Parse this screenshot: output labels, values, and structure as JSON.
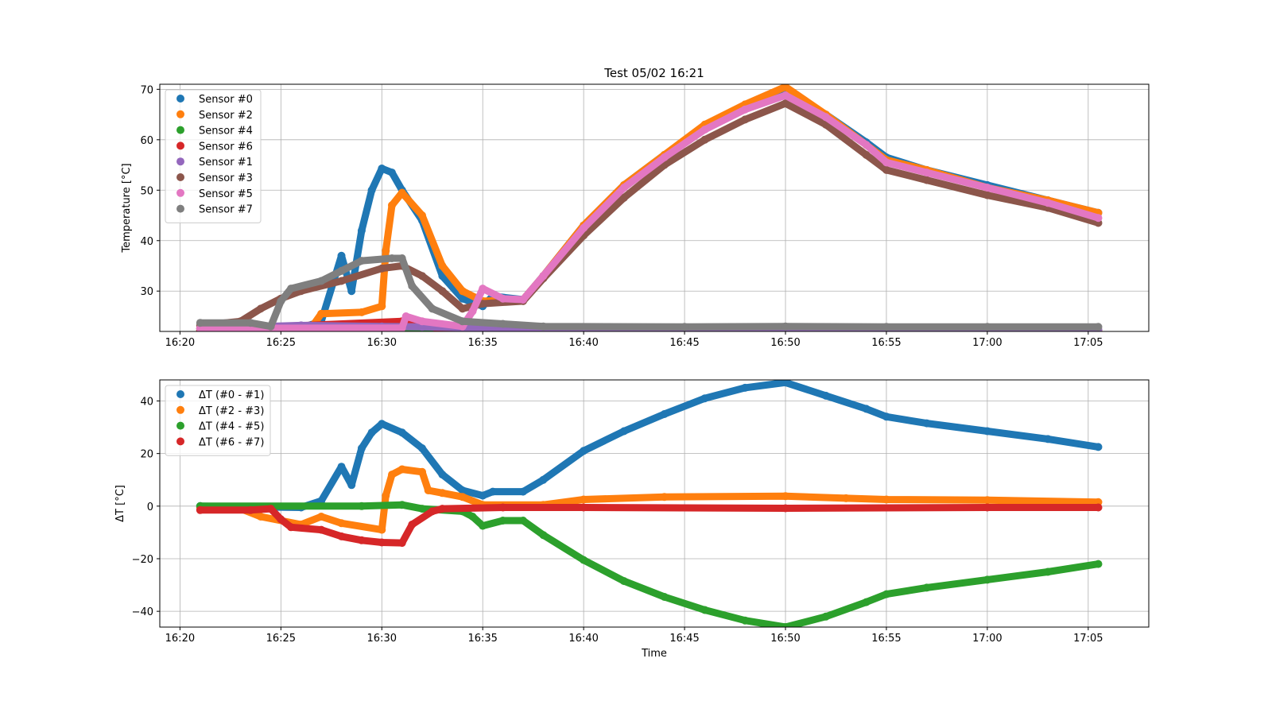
{
  "chart_data": [
    {
      "type": "scatter",
      "title": "Test 05/02 16:21",
      "xlabel": "",
      "ylabel": "Temperature [°C]",
      "x_ticks": [
        "16:20",
        "16:25",
        "16:30",
        "16:35",
        "16:40",
        "16:45",
        "16:50",
        "16:55",
        "17:00",
        "17:05"
      ],
      "y_ticks": [
        30,
        40,
        50,
        60,
        70
      ],
      "xlim": [
        "16:19",
        "17:08"
      ],
      "ylim": [
        22,
        71
      ],
      "grid": true,
      "legend_position": "upper-left",
      "series": [
        {
          "name": "Sensor #0",
          "color": "#1f77b4",
          "points": [
            [
              "16:21",
              22.6
            ],
            [
              "16:26",
              22.7
            ],
            [
              "16:27",
              24
            ],
            [
              "16:28",
              37
            ],
            [
              "16:28.5",
              30
            ],
            [
              "16:29",
              42
            ],
            [
              "16:29.5",
              50
            ],
            [
              "16:30",
              54.3
            ],
            [
              "16:30.5",
              53.5
            ],
            [
              "16:31",
              50
            ],
            [
              "16:32",
              44
            ],
            [
              "16:33",
              33
            ],
            [
              "16:34",
              28.5
            ],
            [
              "16:35",
              27
            ],
            [
              "16:35.5",
              29
            ],
            [
              "16:37",
              28.3
            ],
            [
              "16:38",
              33
            ],
            [
              "16:40",
              43
            ],
            [
              "16:42",
              51
            ],
            [
              "16:44",
              57
            ],
            [
              "16:46",
              62.5
            ],
            [
              "16:48",
              66.5
            ],
            [
              "16:50",
              69.5
            ],
            [
              "16:52",
              65
            ],
            [
              "16:54",
              59.5
            ],
            [
              "16:55",
              56.5
            ],
            [
              "16:57",
              54
            ],
            [
              "17:00",
              51
            ],
            [
              "17:03",
              48
            ],
            [
              "17:05.5",
              45.5
            ]
          ]
        },
        {
          "name": "Sensor #2",
          "color": "#ff7f0e",
          "points": [
            [
              "16:21",
              22.6
            ],
            [
              "16:26.5",
              22.7
            ],
            [
              "16:27",
              25.5
            ],
            [
              "16:29",
              25.8
            ],
            [
              "16:30",
              27
            ],
            [
              "16:30.2",
              38
            ],
            [
              "16:30.5",
              47
            ],
            [
              "16:31",
              49.5
            ],
            [
              "16:32",
              45
            ],
            [
              "16:33",
              35
            ],
            [
              "16:34",
              30
            ],
            [
              "16:35",
              28
            ],
            [
              "16:37",
              28.3
            ],
            [
              "16:38",
              33
            ],
            [
              "16:40",
              43
            ],
            [
              "16:42",
              51
            ],
            [
              "16:44",
              57
            ],
            [
              "16:46",
              63
            ],
            [
              "16:48",
              67
            ],
            [
              "16:50",
              70.5
            ],
            [
              "16:52",
              65
            ],
            [
              "16:54",
              59
            ],
            [
              "16:55",
              56
            ],
            [
              "16:57",
              54
            ],
            [
              "17:00",
              50.5
            ],
            [
              "17:03",
              48
            ],
            [
              "17:05.5",
              45.5
            ]
          ]
        },
        {
          "name": "Sensor #4",
          "color": "#2ca02c",
          "points": [
            [
              "16:21",
              22.2
            ],
            [
              "16:30",
              22.3
            ],
            [
              "16:40",
              22.3
            ],
            [
              "16:50",
              22.3
            ],
            [
              "17:00",
              22.3
            ],
            [
              "17:05.5",
              22.3
            ]
          ]
        },
        {
          "name": "Sensor #6",
          "color": "#d62728",
          "points": [
            [
              "16:21",
              22.3
            ],
            [
              "16:31",
              24
            ],
            [
              "16:33",
              22.5
            ],
            [
              "16:40",
              22.2
            ],
            [
              "16:50",
              22.2
            ],
            [
              "17:05.5",
              22.2
            ]
          ]
        },
        {
          "name": "Sensor #1",
          "color": "#9467bd",
          "points": [
            [
              "16:21",
              22.6
            ],
            [
              "16:26",
              23.2
            ],
            [
              "16:30",
              23
            ],
            [
              "16:32",
              22.9
            ],
            [
              "16:35",
              22.7
            ],
            [
              "16:36",
              22.5
            ],
            [
              "16:40",
              22.4
            ],
            [
              "16:50",
              22.4
            ],
            [
              "17:05.5",
              22.4
            ]
          ]
        },
        {
          "name": "Sensor #3",
          "color": "#8c564b",
          "points": [
            [
              "16:21",
              23.2
            ],
            [
              "16:23",
              24
            ],
            [
              "16:24",
              26.5
            ],
            [
              "16:25",
              28.5
            ],
            [
              "16:26",
              30
            ],
            [
              "16:28",
              32
            ],
            [
              "16:30",
              34.5
            ],
            [
              "16:31",
              35
            ],
            [
              "16:32",
              33
            ],
            [
              "16:33",
              30
            ],
            [
              "16:34",
              26.5
            ],
            [
              "16:35",
              27.5
            ],
            [
              "16:37",
              28
            ],
            [
              "16:38",
              32.5
            ],
            [
              "16:40",
              41
            ],
            [
              "16:42",
              48.5
            ],
            [
              "16:44",
              55
            ],
            [
              "16:46",
              60
            ],
            [
              "16:48",
              64
            ],
            [
              "16:50",
              67.2
            ],
            [
              "16:52",
              63
            ],
            [
              "16:54",
              57
            ],
            [
              "16:55",
              54
            ],
            [
              "16:57",
              52
            ],
            [
              "17:00",
              49
            ],
            [
              "17:03",
              46.5
            ],
            [
              "17:05.5",
              43.5
            ]
          ]
        },
        {
          "name": "Sensor #5",
          "color": "#e377c2",
          "points": [
            [
              "16:21",
              22.6
            ],
            [
              "16:31",
              22.7
            ],
            [
              "16:31.2",
              25
            ],
            [
              "16:32",
              24
            ],
            [
              "16:34",
              23
            ],
            [
              "16:34.5",
              26
            ],
            [
              "16:35",
              30.5
            ],
            [
              "16:36",
              28.5
            ],
            [
              "16:37",
              28.3
            ],
            [
              "16:38",
              33
            ],
            [
              "16:40",
              42.5
            ],
            [
              "16:42",
              50.5
            ],
            [
              "16:44",
              56.5
            ],
            [
              "16:46",
              62
            ],
            [
              "16:48",
              66
            ],
            [
              "16:50",
              68.8
            ],
            [
              "16:52",
              64.5
            ],
            [
              "16:54",
              59
            ],
            [
              "16:55",
              55.5
            ],
            [
              "16:57",
              53.5
            ],
            [
              "17:00",
              50.5
            ],
            [
              "17:03",
              47.5
            ],
            [
              "17:05.5",
              44.5
            ]
          ]
        },
        {
          "name": "Sensor #7",
          "color": "#7f7f7f",
          "points": [
            [
              "16:21",
              23.7
            ],
            [
              "16:23.5",
              23.7
            ],
            [
              "16:24.5",
              23
            ],
            [
              "16:25",
              28
            ],
            [
              "16:25.5",
              30.5
            ],
            [
              "16:27",
              32
            ],
            [
              "16:28",
              34
            ],
            [
              "16:29",
              36
            ],
            [
              "16:30.5",
              36.5
            ],
            [
              "16:31",
              36.5
            ],
            [
              "16:31.5",
              31
            ],
            [
              "16:32.5",
              26.5
            ],
            [
              "16:34",
              24
            ],
            [
              "16:36",
              23.5
            ],
            [
              "16:38",
              23
            ],
            [
              "16:45",
              22.9
            ],
            [
              "16:50",
              23
            ],
            [
              "16:55",
              22.9
            ],
            [
              "17:00",
              22.9
            ],
            [
              "17:05.5",
              22.9
            ]
          ]
        }
      ]
    },
    {
      "type": "scatter",
      "title": "",
      "xlabel": "Time",
      "ylabel": "ΔT [°C]",
      "x_ticks": [
        "16:20",
        "16:25",
        "16:30",
        "16:35",
        "16:40",
        "16:45",
        "16:50",
        "16:55",
        "17:00",
        "17:05"
      ],
      "y_ticks": [
        -40,
        -20,
        0,
        20,
        40
      ],
      "xlim": [
        "16:19",
        "17:08"
      ],
      "ylim": [
        -46,
        48
      ],
      "grid": true,
      "legend_position": "upper-left",
      "series": [
        {
          "name": "ΔT (#0 - #1)",
          "color": "#1f77b4",
          "points": [
            [
              "16:21",
              0
            ],
            [
              "16:26",
              -0.5
            ],
            [
              "16:27",
              2
            ],
            [
              "16:28",
              15
            ],
            [
              "16:28.5",
              8
            ],
            [
              "16:29",
              22
            ],
            [
              "16:29.5",
              28
            ],
            [
              "16:30",
              31.3
            ],
            [
              "16:31",
              28
            ],
            [
              "16:32",
              22
            ],
            [
              "16:33",
              12
            ],
            [
              "16:34",
              6
            ],
            [
              "16:35",
              4
            ],
            [
              "16:35.5",
              5.5
            ],
            [
              "16:37",
              5.5
            ],
            [
              "16:38",
              10
            ],
            [
              "16:40",
              21
            ],
            [
              "16:42",
              28.5
            ],
            [
              "16:44",
              35
            ],
            [
              "16:46",
              41
            ],
            [
              "16:48",
              45
            ],
            [
              "16:50",
              47
            ],
            [
              "16:52",
              42
            ],
            [
              "16:54",
              37
            ],
            [
              "16:55",
              34
            ],
            [
              "16:57",
              31.5
            ],
            [
              "17:00",
              28.5
            ],
            [
              "17:03",
              25.5
            ],
            [
              "17:05.5",
              22.5
            ]
          ]
        },
        {
          "name": "ΔT (#2 - #3)",
          "color": "#ff7f0e",
          "points": [
            [
              "16:21",
              -0.5
            ],
            [
              "16:23",
              -1
            ],
            [
              "16:24",
              -4
            ],
            [
              "16:26",
              -7
            ],
            [
              "16:27",
              -4
            ],
            [
              "16:28",
              -6.5
            ],
            [
              "16:30",
              -9
            ],
            [
              "16:30.2",
              4
            ],
            [
              "16:30.5",
              12
            ],
            [
              "16:31",
              14
            ],
            [
              "16:32",
              13
            ],
            [
              "16:32.3",
              6
            ],
            [
              "16:33",
              5
            ],
            [
              "16:34",
              3.5
            ],
            [
              "16:35",
              0.5
            ],
            [
              "16:38",
              0.5
            ],
            [
              "16:40",
              2.5
            ],
            [
              "16:44",
              3.5
            ],
            [
              "16:50",
              3.8
            ],
            [
              "16:53",
              3
            ],
            [
              "16:55",
              2.5
            ],
            [
              "17:00",
              2.3
            ],
            [
              "17:05.5",
              1.5
            ]
          ]
        },
        {
          "name": "ΔT (#4 - #5)",
          "color": "#2ca02c",
          "points": [
            [
              "16:21",
              0
            ],
            [
              "16:29",
              0
            ],
            [
              "16:31",
              0.5
            ],
            [
              "16:32",
              -1
            ],
            [
              "16:34",
              -2
            ],
            [
              "16:34.5",
              -4
            ],
            [
              "16:35",
              -7.5
            ],
            [
              "16:36",
              -5.5
            ],
            [
              "16:37",
              -5.5
            ],
            [
              "16:38",
              -11
            ],
            [
              "16:40",
              -20.5
            ],
            [
              "16:42",
              -28.5
            ],
            [
              "16:44",
              -34.5
            ],
            [
              "16:46",
              -39.5
            ],
            [
              "16:48",
              -43.5
            ],
            [
              "16:50",
              -46
            ],
            [
              "16:52",
              -42
            ],
            [
              "16:54",
              -36.5
            ],
            [
              "16:55",
              -33.5
            ],
            [
              "16:57",
              -31
            ],
            [
              "17:00",
              -28
            ],
            [
              "17:03",
              -25
            ],
            [
              "17:05.5",
              -22
            ]
          ]
        },
        {
          "name": "ΔT (#6 - #7)",
          "color": "#d62728",
          "points": [
            [
              "16:21",
              -1.5
            ],
            [
              "16:23.5",
              -1.5
            ],
            [
              "16:24.5",
              -1
            ],
            [
              "16:25",
              -5
            ],
            [
              "16:25.5",
              -8
            ],
            [
              "16:27",
              -9
            ],
            [
              "16:28",
              -11.5
            ],
            [
              "16:29",
              -13
            ],
            [
              "16:30",
              -13.8
            ],
            [
              "16:31",
              -14
            ],
            [
              "16:31.5",
              -7
            ],
            [
              "16:32.5",
              -2
            ],
            [
              "16:33",
              -1
            ],
            [
              "16:36",
              -0.5
            ],
            [
              "16:40",
              -0.5
            ],
            [
              "16:50",
              -0.8
            ],
            [
              "17:00",
              -0.5
            ],
            [
              "17:05.5",
              -0.5
            ]
          ]
        }
      ]
    }
  ]
}
